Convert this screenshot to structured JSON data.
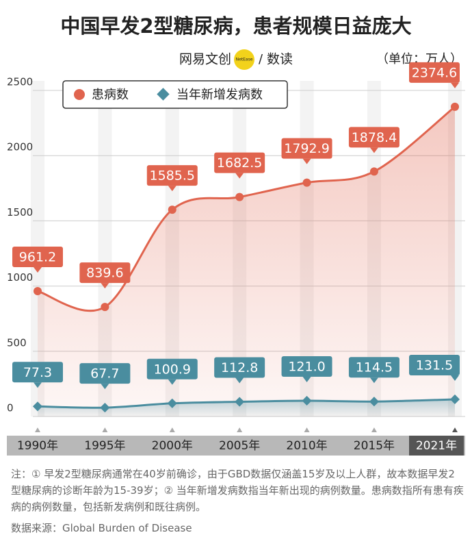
{
  "chart_data": {
    "type": "line",
    "title": "中国早发2型糖尿病，患者规模日益庞大",
    "brand": "网易文创",
    "brand_badge": "NetEase",
    "brand_section": "数读",
    "unit": "（单位：万人）",
    "x": [
      1990,
      1995,
      2000,
      2005,
      2010,
      2015,
      2021
    ],
    "xlim": [
      1990,
      2021
    ],
    "xticks": [
      {
        "value": 1990,
        "label": "1990年"
      },
      {
        "value": 1995,
        "label": "1995年"
      },
      {
        "value": 2000,
        "label": "2000年"
      },
      {
        "value": 2005,
        "label": "2005年"
      },
      {
        "value": 2010,
        "label": "2010年"
      },
      {
        "value": 2015,
        "label": "2015年"
      },
      {
        "value": 2021,
        "label": "2021年"
      }
    ],
    "ylim": [
      0,
      2500
    ],
    "yticks": [
      0,
      500,
      1000,
      1500,
      2000,
      2500
    ],
    "grid": true,
    "series": [
      {
        "name": "患病数",
        "color": "#e0644e",
        "marker": "circle",
        "values": [
          961.2,
          839.6,
          1585.5,
          1682.5,
          1792.9,
          1878.4,
          2374.6
        ],
        "value_labels": [
          "961.2",
          "839.6",
          "1585.5",
          "1682.5",
          "1792.9",
          "1878.4",
          "2374.6"
        ]
      },
      {
        "name": "当年新增发病数",
        "color": "#4a8d9f",
        "marker": "diamond",
        "values": [
          77.3,
          67.7,
          100.9,
          112.8,
          121.0,
          114.5,
          131.5
        ],
        "value_labels": [
          "77.3",
          "67.7",
          "100.9",
          "112.8",
          "121.0",
          "114.5",
          "131.5"
        ]
      }
    ],
    "note": "注：① 早发2型糖尿病通常在40岁前确诊，由于GBD数据仅涵盖15岁及以上人群，故本数据早发2型糖尿病的诊断年龄为15-39岁；② 当年新增发病数指当年新出现的病例数量。患病数指所有患有疾病的病例数量，包括新发病例和既往病例。",
    "source": "数据来源：Global Burden of Disease"
  }
}
